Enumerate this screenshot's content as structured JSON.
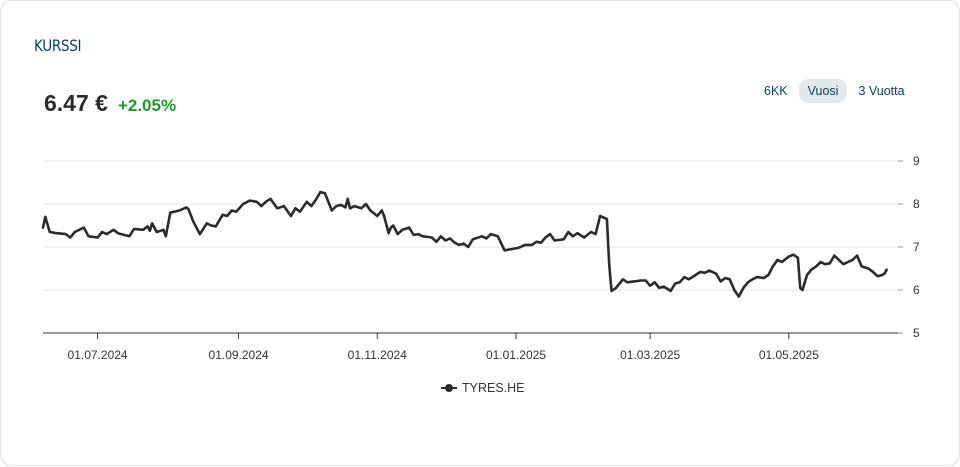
{
  "section": {
    "title": "KURSSI"
  },
  "quote": {
    "price": "6.47 €",
    "change": "+2.05%"
  },
  "periods": [
    {
      "label": "6KK",
      "active": false
    },
    {
      "label": "Vuosi",
      "active": true
    },
    {
      "label": "3 Vuotta",
      "active": false
    }
  ],
  "colors": {
    "line": "#2b2b2b",
    "grid": "#e6e6e6",
    "axis": "#333333",
    "positive": "#1d9a2e",
    "title": "#0d3f5c"
  },
  "chart_data": {
    "type": "line",
    "series": [
      {
        "name": "TYRES.HE",
        "points": [
          [
            "2024-06-07",
            7.45
          ],
          [
            "2024-06-08",
            7.7
          ],
          [
            "2024-06-10",
            7.35
          ],
          [
            "2024-06-13",
            7.32
          ],
          [
            "2024-06-17",
            7.3
          ],
          [
            "2024-06-19",
            7.22
          ],
          [
            "2024-06-21",
            7.35
          ],
          [
            "2024-06-25",
            7.45
          ],
          [
            "2024-06-27",
            7.25
          ],
          [
            "2024-07-01",
            7.22
          ],
          [
            "2024-07-03",
            7.35
          ],
          [
            "2024-07-05",
            7.3
          ],
          [
            "2024-07-08",
            7.4
          ],
          [
            "2024-07-10",
            7.32
          ],
          [
            "2024-07-15",
            7.25
          ],
          [
            "2024-07-17",
            7.42
          ],
          [
            "2024-07-21",
            7.4
          ],
          [
            "2024-07-23",
            7.48
          ],
          [
            "2024-07-24",
            7.38
          ],
          [
            "2024-07-25",
            7.55
          ],
          [
            "2024-07-27",
            7.35
          ],
          [
            "2024-07-30",
            7.4
          ],
          [
            "2024-07-31",
            7.25
          ],
          [
            "2024-08-02",
            7.8
          ],
          [
            "2024-08-06",
            7.85
          ],
          [
            "2024-08-09",
            7.92
          ],
          [
            "2024-08-10",
            7.88
          ],
          [
            "2024-08-12",
            7.6
          ],
          [
            "2024-08-15",
            7.3
          ],
          [
            "2024-08-18",
            7.55
          ],
          [
            "2024-08-20",
            7.5
          ],
          [
            "2024-08-22",
            7.48
          ],
          [
            "2024-08-25",
            7.75
          ],
          [
            "2024-08-27",
            7.72
          ],
          [
            "2024-08-29",
            7.85
          ],
          [
            "2024-08-31",
            7.82
          ],
          [
            "2024-09-03",
            8.0
          ],
          [
            "2024-09-06",
            8.08
          ],
          [
            "2024-09-09",
            8.05
          ],
          [
            "2024-09-11",
            7.95
          ],
          [
            "2024-09-13",
            8.05
          ],
          [
            "2024-09-15",
            8.12
          ],
          [
            "2024-09-18",
            7.9
          ],
          [
            "2024-09-21",
            7.95
          ],
          [
            "2024-09-24",
            7.72
          ],
          [
            "2024-09-26",
            7.9
          ],
          [
            "2024-09-28",
            7.82
          ],
          [
            "2024-10-01",
            8.05
          ],
          [
            "2024-10-03",
            7.95
          ],
          [
            "2024-10-05",
            8.1
          ],
          [
            "2024-10-07",
            8.28
          ],
          [
            "2024-10-09",
            8.25
          ],
          [
            "2024-10-12",
            7.85
          ],
          [
            "2024-10-14",
            7.95
          ],
          [
            "2024-10-16",
            7.98
          ],
          [
            "2024-10-18",
            7.92
          ],
          [
            "2024-10-19",
            8.12
          ],
          [
            "2024-10-20",
            7.9
          ],
          [
            "2024-10-22",
            7.95
          ],
          [
            "2024-10-25",
            7.9
          ],
          [
            "2024-10-27",
            8.0
          ],
          [
            "2024-10-29",
            7.85
          ],
          [
            "2024-11-01",
            7.72
          ],
          [
            "2024-11-03",
            7.85
          ],
          [
            "2024-11-04",
            7.72
          ],
          [
            "2024-11-06",
            7.32
          ],
          [
            "2024-11-07",
            7.45
          ],
          [
            "2024-11-08",
            7.5
          ],
          [
            "2024-11-10",
            7.3
          ],
          [
            "2024-11-12",
            7.4
          ],
          [
            "2024-11-15",
            7.45
          ],
          [
            "2024-11-17",
            7.28
          ],
          [
            "2024-11-19",
            7.3
          ],
          [
            "2024-11-21",
            7.25
          ],
          [
            "2024-11-25",
            7.22
          ],
          [
            "2024-11-27",
            7.12
          ],
          [
            "2024-11-29",
            7.25
          ],
          [
            "2024-12-01",
            7.15
          ],
          [
            "2024-12-03",
            7.2
          ],
          [
            "2024-12-05",
            7.1
          ],
          [
            "2024-12-07",
            7.05
          ],
          [
            "2024-12-09",
            7.08
          ],
          [
            "2024-12-11",
            7.0
          ],
          [
            "2024-12-13",
            7.18
          ],
          [
            "2024-12-17",
            7.25
          ],
          [
            "2024-12-19",
            7.2
          ],
          [
            "2024-12-21",
            7.3
          ],
          [
            "2024-12-24",
            7.25
          ],
          [
            "2024-12-27",
            6.92
          ],
          [
            "2024-12-30",
            6.95
          ],
          [
            "2025-01-02",
            6.98
          ],
          [
            "2025-01-05",
            7.05
          ],
          [
            "2025-01-08",
            7.05
          ],
          [
            "2025-01-10",
            7.12
          ],
          [
            "2025-01-12",
            7.1
          ],
          [
            "2025-01-14",
            7.22
          ],
          [
            "2025-01-16",
            7.3
          ],
          [
            "2025-01-18",
            7.15
          ],
          [
            "2025-01-22",
            7.18
          ],
          [
            "2025-01-24",
            7.35
          ],
          [
            "2025-01-26",
            7.25
          ],
          [
            "2025-01-28",
            7.32
          ],
          [
            "2025-01-31",
            7.22
          ],
          [
            "2025-02-03",
            7.35
          ],
          [
            "2025-02-05",
            7.3
          ],
          [
            "2025-02-07",
            7.72
          ],
          [
            "2025-02-10",
            7.65
          ],
          [
            "2025-02-11",
            6.6
          ],
          [
            "2025-02-12",
            5.98
          ],
          [
            "2025-02-14",
            6.05
          ],
          [
            "2025-02-17",
            6.25
          ],
          [
            "2025-02-19",
            6.18
          ],
          [
            "2025-02-22",
            6.2
          ],
          [
            "2025-02-25",
            6.22
          ],
          [
            "2025-02-27",
            6.22
          ],
          [
            "2025-03-01",
            6.1
          ],
          [
            "2025-03-03",
            6.18
          ],
          [
            "2025-03-05",
            6.05
          ],
          [
            "2025-03-07",
            6.08
          ],
          [
            "2025-03-10",
            5.98
          ],
          [
            "2025-03-12",
            6.15
          ],
          [
            "2025-03-14",
            6.18
          ],
          [
            "2025-03-16",
            6.3
          ],
          [
            "2025-03-18",
            6.25
          ],
          [
            "2025-03-21",
            6.35
          ],
          [
            "2025-03-23",
            6.42
          ],
          [
            "2025-03-25",
            6.4
          ],
          [
            "2025-03-27",
            6.45
          ],
          [
            "2025-03-30",
            6.38
          ],
          [
            "2025-04-01",
            6.2
          ],
          [
            "2025-04-03",
            6.28
          ],
          [
            "2025-04-05",
            6.25
          ],
          [
            "2025-04-07",
            6.0
          ],
          [
            "2025-04-09",
            5.85
          ],
          [
            "2025-04-11",
            6.05
          ],
          [
            "2025-04-13",
            6.18
          ],
          [
            "2025-04-15",
            6.25
          ],
          [
            "2025-04-17",
            6.3
          ],
          [
            "2025-04-20",
            6.28
          ],
          [
            "2025-04-22",
            6.35
          ],
          [
            "2025-04-24",
            6.55
          ],
          [
            "2025-04-26",
            6.7
          ],
          [
            "2025-04-28",
            6.65
          ],
          [
            "2025-05-01",
            6.78
          ],
          [
            "2025-05-03",
            6.82
          ],
          [
            "2025-05-05",
            6.75
          ],
          [
            "2025-05-06",
            6.05
          ],
          [
            "2025-05-07",
            6.0
          ],
          [
            "2025-05-09",
            6.35
          ],
          [
            "2025-05-11",
            6.48
          ],
          [
            "2025-05-13",
            6.55
          ],
          [
            "2025-05-15",
            6.65
          ],
          [
            "2025-05-17",
            6.6
          ],
          [
            "2025-05-19",
            6.62
          ],
          [
            "2025-05-21",
            6.8
          ],
          [
            "2025-05-23",
            6.7
          ],
          [
            "2025-05-25",
            6.6
          ],
          [
            "2025-05-27",
            6.65
          ],
          [
            "2025-05-29",
            6.7
          ],
          [
            "2025-05-31",
            6.8
          ],
          [
            "2025-06-02",
            6.55
          ],
          [
            "2025-06-05",
            6.5
          ],
          [
            "2025-06-07",
            6.42
          ],
          [
            "2025-06-09",
            6.32
          ],
          [
            "2025-06-11",
            6.35
          ],
          [
            "2025-06-12",
            6.38
          ],
          [
            "2025-06-13",
            6.47
          ]
        ]
      }
    ],
    "x_ticks": [
      "01.07.2024",
      "01.09.2024",
      "01.11.2024",
      "01.01.2025",
      "01.03.2025",
      "01.05.2025"
    ],
    "x_tick_dates": [
      "2024-07-01",
      "2024-09-01",
      "2024-11-01",
      "2025-01-01",
      "2025-03-01",
      "2025-05-01"
    ],
    "xlim": [
      "2024-06-07",
      "2025-06-18"
    ],
    "y_ticks": [
      5,
      6,
      7,
      8,
      9
    ],
    "ylim": [
      5,
      9
    ],
    "y_axis_side": "right",
    "grid": true,
    "legend": "bottom-center"
  }
}
